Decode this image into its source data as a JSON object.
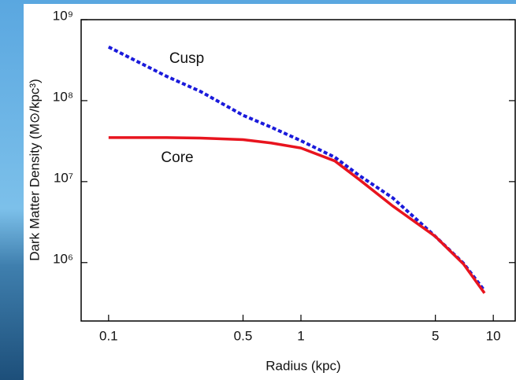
{
  "chart_data": {
    "type": "line",
    "x": [
      0.1,
      0.2,
      0.3,
      0.5,
      0.7,
      1,
      1.5,
      2,
      3,
      5,
      7,
      9
    ],
    "series": [
      {
        "name": "Cusp",
        "color": "#1a1adb",
        "dash": true,
        "values": [
          460000000,
          200000000,
          130000000,
          66000000,
          47000000,
          32000000,
          20000000,
          12000000,
          6300000,
          2100000,
          980000,
          450000
        ]
      },
      {
        "name": "Core",
        "color": "#e8141e",
        "dash": false,
        "values": [
          35000000,
          35000000,
          34500000,
          33000000,
          30000000,
          26000000,
          18000000,
          10700000,
          5000000,
          2100000,
          960000,
          420000
        ]
      }
    ],
    "x_label": "Radius (kpc)",
    "y_label": "Dark Matter Density (M⊙/kpc³)",
    "xlim": [
      0.072,
      13
    ],
    "ylim": [
      190000,
      1000000000
    ],
    "xticks": [
      0.1,
      0.5,
      1,
      5,
      10
    ],
    "yticks": [
      {
        "value": 1000000,
        "label": "10⁶"
      },
      {
        "value": 10000000,
        "label": "10⁷"
      },
      {
        "value": 100000000,
        "label": "10⁸"
      },
      {
        "value": 1000000000,
        "label": "10⁹"
      }
    ],
    "xscale": "log",
    "yscale": "log"
  }
}
